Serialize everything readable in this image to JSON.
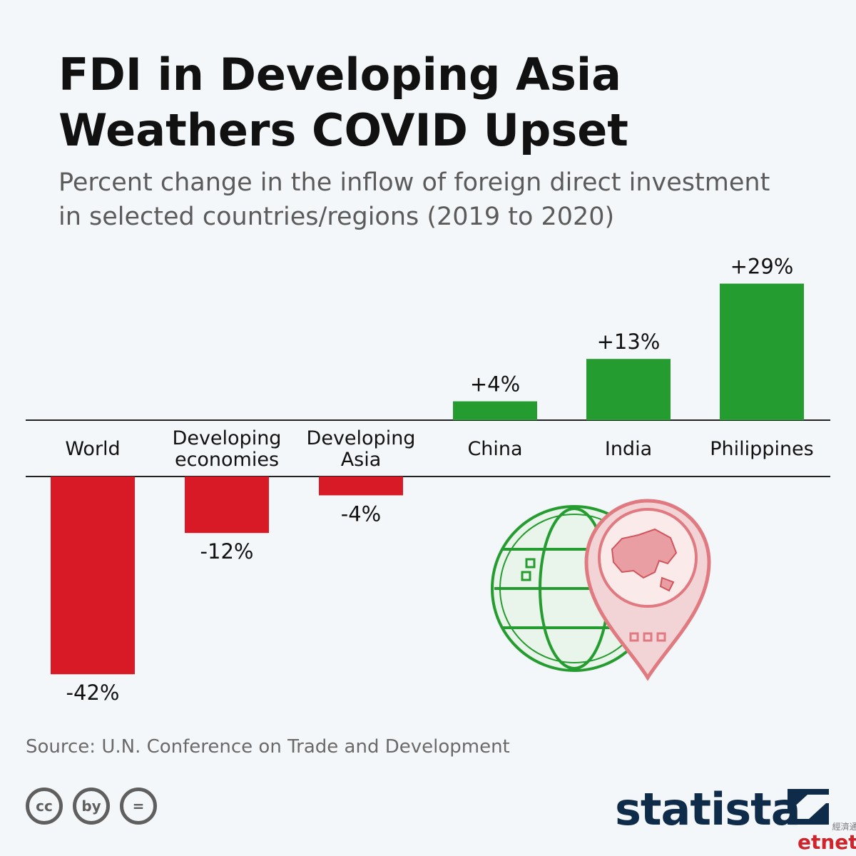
{
  "title_line1": "FDI in Developing Asia",
  "title_line2": "Weathers COVID Upset",
  "subtitle_line1": "Percent change in the inflow of foreign direct investment",
  "subtitle_line2": "in selected countries/regions (2019 to 2020)",
  "source": "Source: U.N. Conference on Trade and Development",
  "brand": "statista",
  "corner_small": "經濟通",
  "corner_big": "etnet",
  "cc_icons": [
    "cc",
    "by",
    "="
  ],
  "colors": {
    "positive": "#259c2f",
    "negative": "#d71a25",
    "accent_red": "#d71a25",
    "accent_green": "#259c2f",
    "illustration_green": "#259c2f",
    "illustration_red": "#e07a80"
  },
  "chart_data": {
    "type": "bar",
    "title": "",
    "categories": [
      [
        "World"
      ],
      [
        "Developing",
        "economies"
      ],
      [
        "Developing",
        "Asia"
      ],
      [
        "China"
      ],
      [
        "India"
      ],
      [
        "Philippines"
      ]
    ],
    "values": [
      -42,
      -12,
      -4,
      4,
      13,
      29
    ],
    "value_labels": [
      "-42%",
      "-12%",
      "-4%",
      "+4%",
      "+13%",
      "+29%"
    ],
    "unit": "%",
    "ylim": [
      -42,
      29
    ],
    "grid": false,
    "legend": "none"
  }
}
